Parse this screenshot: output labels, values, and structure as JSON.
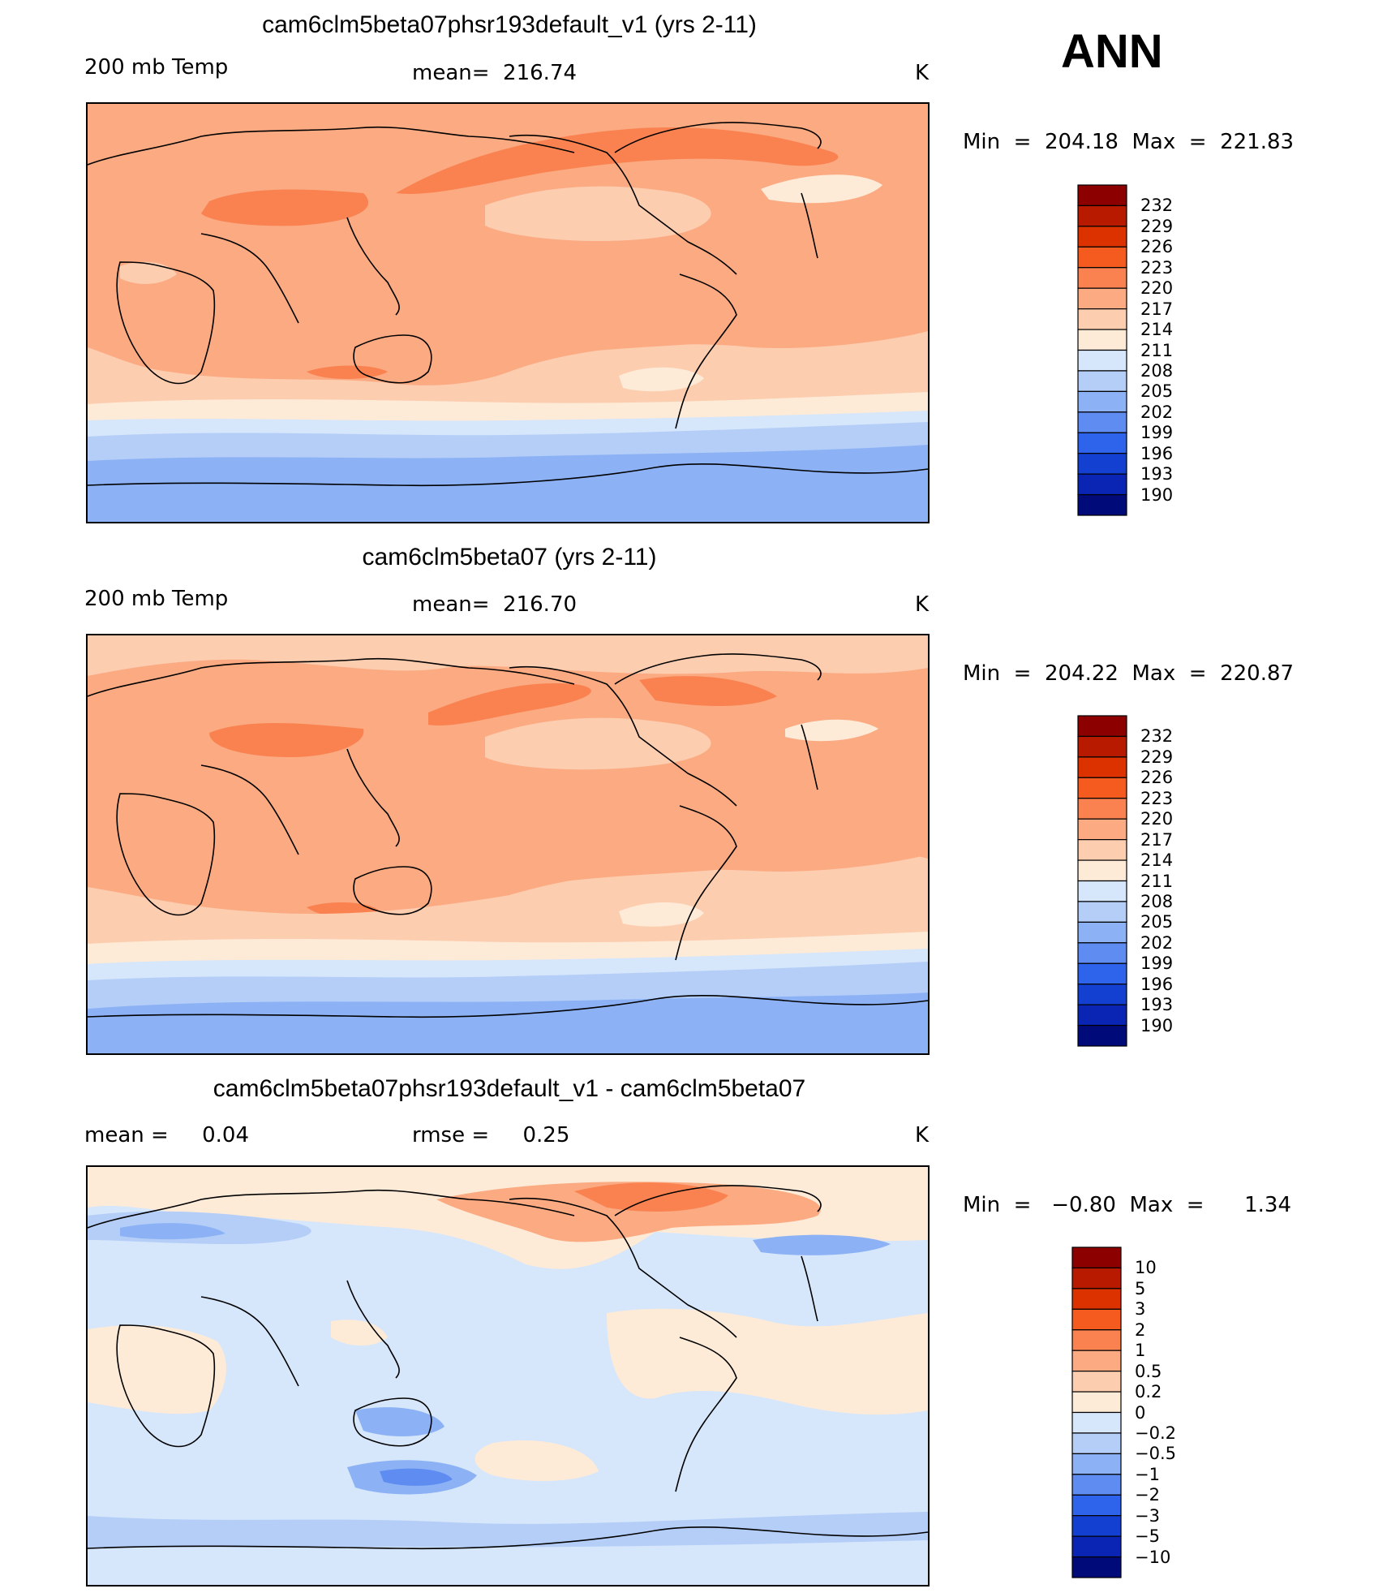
{
  "season": "ANN",
  "panels": [
    {
      "id": "test",
      "title": "cam6clm5beta07phsr193default_v1 (yrs 2-11)",
      "left_label": "200 mb Temp",
      "center_label": "mean=  216.74",
      "units": "K",
      "minmax": "Min  =  204.18  Max  =  221.83",
      "colorbar": {
        "levels": [
          "232",
          "229",
          "226",
          "223",
          "220",
          "217",
          "214",
          "211",
          "208",
          "205",
          "202",
          "199",
          "196",
          "193",
          "190"
        ],
        "colors": [
          "#8c0000",
          "#b81a00",
          "#dc3200",
          "#f55a1e",
          "#fa8250",
          "#fbaa82",
          "#fdcdb0",
          "#fdebd8",
          "#d6e6fb",
          "#b4cef8",
          "#8cb2f5",
          "#5f8cf0",
          "#2e63ec",
          "#1440d2",
          "#0a24b4",
          "#000a78"
        ]
      }
    },
    {
      "id": "control",
      "title": "cam6clm5beta07 (yrs 2-11)",
      "left_label": "200 mb Temp",
      "center_label": "mean=  216.70",
      "units": "K",
      "minmax": "Min  =  204.22  Max  =  220.87",
      "colorbar": {
        "levels": [
          "232",
          "229",
          "226",
          "223",
          "220",
          "217",
          "214",
          "211",
          "208",
          "205",
          "202",
          "199",
          "196",
          "193",
          "190"
        ],
        "colors": [
          "#8c0000",
          "#b81a00",
          "#dc3200",
          "#f55a1e",
          "#fa8250",
          "#fbaa82",
          "#fdcdb0",
          "#fdebd8",
          "#d6e6fb",
          "#b4cef8",
          "#8cb2f5",
          "#5f8cf0",
          "#2e63ec",
          "#1440d2",
          "#0a24b4",
          "#000a78"
        ]
      }
    },
    {
      "id": "difference",
      "title": "cam6clm5beta07phsr193default_v1 - cam6clm5beta07",
      "left_label": "mean =     0.04",
      "center_label": "rmse =     0.25",
      "units": "K",
      "minmax": "Min  =   −0.80  Max  =      1.34",
      "colorbar": {
        "levels": [
          "10",
          "5",
          "3",
          "2",
          "1",
          "0.5",
          "0.2",
          "0",
          "−0.2",
          "−0.5",
          "−1",
          "−2",
          "−3",
          "−5",
          "−10"
        ],
        "colors": [
          "#8c0000",
          "#b81a00",
          "#dc3200",
          "#f55a1e",
          "#fa8250",
          "#fbaa82",
          "#fdcdb0",
          "#fdebd8",
          "#d6e6fb",
          "#b4cef8",
          "#8cb2f5",
          "#5f8cf0",
          "#2e63ec",
          "#1440d2",
          "#0a24b4",
          "#000a78"
        ]
      }
    }
  ],
  "chart_data": [
    {
      "type": "heatmap",
      "title": "cam6clm5beta07phsr193default_v1 (yrs 2-11)",
      "variable": "200 mb Temp",
      "units": "K",
      "mean": 216.74,
      "min": 204.18,
      "max": 221.83,
      "contour_levels": [
        190,
        193,
        196,
        199,
        202,
        205,
        208,
        211,
        214,
        217,
        220,
        223,
        226,
        229,
        232
      ]
    },
    {
      "type": "heatmap",
      "title": "cam6clm5beta07 (yrs 2-11)",
      "variable": "200 mb Temp",
      "units": "K",
      "mean": 216.7,
      "min": 204.22,
      "max": 220.87,
      "contour_levels": [
        190,
        193,
        196,
        199,
        202,
        205,
        208,
        211,
        214,
        217,
        220,
        223,
        226,
        229,
        232
      ]
    },
    {
      "type": "heatmap",
      "title": "cam6clm5beta07phsr193default_v1 - cam6clm5beta07",
      "units": "K",
      "mean": 0.04,
      "rmse": 0.25,
      "min": -0.8,
      "max": 1.34,
      "contour_levels": [
        -10,
        -5,
        -3,
        -2,
        -1,
        -0.5,
        -0.2,
        0,
        0.2,
        0.5,
        1,
        2,
        3,
        5,
        10
      ]
    }
  ]
}
